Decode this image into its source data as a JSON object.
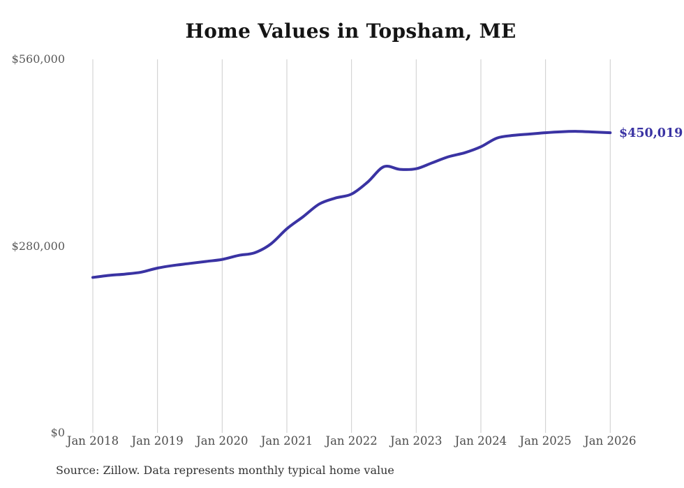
{
  "page": {
    "source_note": "Source: Zillow. Data represents monthly typical home value"
  },
  "colors": {
    "line": "#3a33a3",
    "grid": "#cccccc",
    "x_tick_text": "#4d4d4d",
    "y_tick_text": "#595959",
    "title_text": "#141414",
    "source_text": "#333333",
    "background": "#ffffff"
  },
  "chart_data": {
    "type": "line",
    "title": "Home Values in Topsham, ME",
    "series_name": "Monthly typical home value",
    "xlim": [
      2018,
      2026
    ],
    "ylim": [
      0,
      560000
    ],
    "x_ticks": [
      2018,
      2019,
      2020,
      2021,
      2022,
      2023,
      2024,
      2025,
      2026
    ],
    "x_tick_labels": [
      "Jan 2018",
      "Jan 2019",
      "Jan 2020",
      "Jan 2021",
      "Jan 2022",
      "Jan 2023",
      "Jan 2024",
      "Jan 2025",
      "Jan 2026"
    ],
    "y_ticks": [
      0,
      280000,
      560000
    ],
    "y_tick_labels": [
      "$0",
      "$280,000",
      "$560,000"
    ],
    "grid": "vertical",
    "legend": "none",
    "final_value": 450019,
    "final_value_label": "$450,019",
    "points": [
      [
        2018.0,
        233000
      ],
      [
        2018.25,
        236000
      ],
      [
        2018.5,
        238000
      ],
      [
        2018.75,
        241000
      ],
      [
        2019.0,
        247000
      ],
      [
        2019.25,
        251000
      ],
      [
        2019.5,
        254000
      ],
      [
        2019.75,
        257000
      ],
      [
        2020.0,
        260000
      ],
      [
        2020.25,
        266000
      ],
      [
        2020.5,
        270000
      ],
      [
        2020.75,
        283000
      ],
      [
        2021.0,
        306000
      ],
      [
        2021.25,
        324000
      ],
      [
        2021.5,
        343000
      ],
      [
        2021.75,
        352000
      ],
      [
        2022.0,
        358000
      ],
      [
        2022.25,
        376000
      ],
      [
        2022.5,
        399000
      ],
      [
        2022.75,
        395000
      ],
      [
        2023.0,
        396000
      ],
      [
        2023.25,
        405000
      ],
      [
        2023.5,
        414000
      ],
      [
        2023.75,
        420000
      ],
      [
        2024.0,
        429000
      ],
      [
        2024.25,
        442000
      ],
      [
        2024.5,
        446000
      ],
      [
        2024.75,
        448000
      ],
      [
        2025.0,
        450000
      ],
      [
        2025.25,
        451500
      ],
      [
        2025.5,
        452000
      ],
      [
        2025.75,
        451000
      ],
      [
        2026.0,
        450019
      ]
    ]
  }
}
